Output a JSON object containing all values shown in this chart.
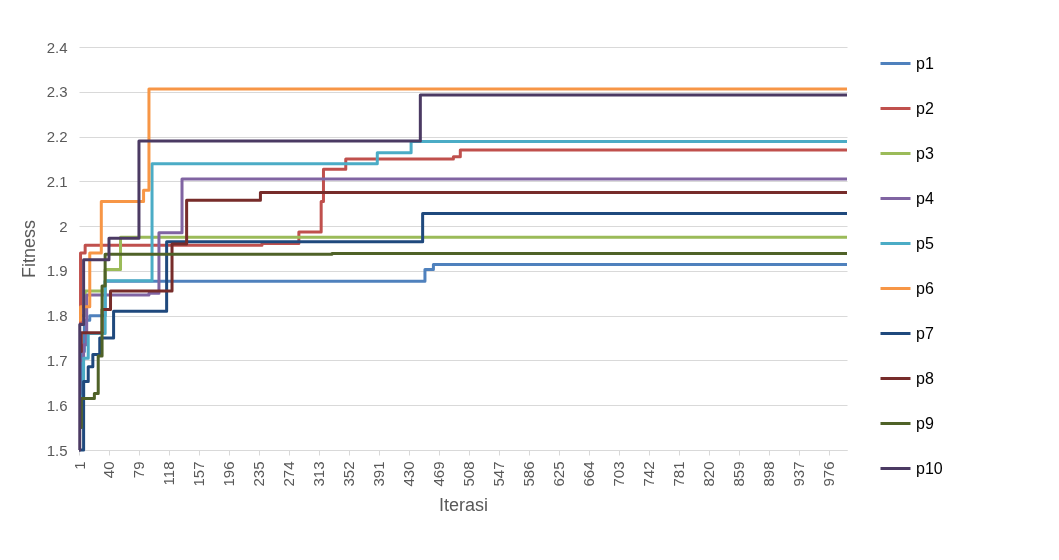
{
  "chart_data": {
    "type": "step",
    "xlabel": "Iterasi",
    "ylabel": "Fitness",
    "xlim": [
      1,
      1000
    ],
    "xticks": [
      1,
      40,
      79,
      118,
      157,
      196,
      235,
      274,
      313,
      352,
      391,
      430,
      469,
      508,
      547,
      586,
      625,
      664,
      703,
      742,
      781,
      820,
      859,
      898,
      937,
      976
    ],
    "ylim": [
      1.5,
      2.4
    ],
    "yticks": [
      1.5,
      1.6,
      1.7,
      1.8,
      1.9,
      2,
      2.1,
      2.2,
      2.3,
      2.4
    ],
    "grid": "y",
    "legend": "right",
    "marker": "none",
    "line_style": "solid",
    "series": [
      {
        "name": "p1",
        "color": "#4f81bd",
        "x": [
          1,
          4,
          8,
          15,
          35,
          451,
          462,
          1000
        ],
        "values": [
          1.6,
          1.72,
          1.79,
          1.8,
          1.877,
          1.903,
          1.914,
          1.914
        ]
      },
      {
        "name": "p2",
        "color": "#c0504d",
        "x": [
          1,
          3,
          9,
          239,
          287,
          316,
          319,
          348,
          488,
          497,
          1000
        ],
        "values": [
          1.78,
          1.94,
          1.957,
          1.961,
          1.987,
          2.055,
          2.127,
          2.15,
          2.155,
          2.17,
          2.17
        ]
      },
      {
        "name": "p3",
        "color": "#9bbb59",
        "x": [
          1,
          9,
          35,
          55,
          1000
        ],
        "values": [
          1.8,
          1.855,
          1.903,
          1.975,
          1.975
        ]
      },
      {
        "name": "p4",
        "color": "#8064a2",
        "x": [
          1,
          7,
          11,
          92,
          105,
          135,
          1000
        ],
        "values": [
          1.7,
          1.735,
          1.846,
          1.85,
          1.985,
          2.105,
          2.105
        ]
      },
      {
        "name": "p5",
        "color": "#4bacc6",
        "x": [
          1,
          7,
          13,
          35,
          96,
          389,
          433,
          1000
        ],
        "values": [
          1.62,
          1.705,
          1.76,
          1.878,
          2.139,
          2.164,
          2.189,
          2.189
        ]
      },
      {
        "name": "p6",
        "color": "#f79646",
        "x": [
          1,
          3,
          15,
          30,
          85,
          92,
          1000
        ],
        "values": [
          1.79,
          1.82,
          1.94,
          2.055,
          2.08,
          2.306,
          2.306
        ]
      },
      {
        "name": "p7",
        "color": "#1f497d",
        "x": [
          1,
          7,
          13,
          19,
          28,
          46,
          115,
          448,
          1000
        ],
        "values": [
          1.5,
          1.653,
          1.686,
          1.713,
          1.75,
          1.81,
          1.965,
          2.028,
          2.028
        ]
      },
      {
        "name": "p8",
        "color": "#772c2a",
        "x": [
          1,
          4,
          31,
          42,
          122,
          141,
          237,
          1000
        ],
        "values": [
          1.72,
          1.762,
          1.814,
          1.855,
          1.96,
          2.058,
          2.075,
          2.075
        ]
      },
      {
        "name": "p9",
        "color": "#4f6228",
        "x": [
          1,
          4,
          21,
          26,
          31,
          35,
          330,
          1000
        ],
        "values": [
          1.55,
          1.615,
          1.626,
          1.71,
          1.866,
          1.937,
          1.939,
          1.939
        ]
      },
      {
        "name": "p10",
        "color": "#4b3a63",
        "x": [
          1,
          2,
          7,
          40,
          79,
          445,
          1000
        ],
        "values": [
          1.5,
          1.78,
          1.925,
          1.973,
          2.19,
          2.293,
          2.293
        ]
      }
    ]
  }
}
